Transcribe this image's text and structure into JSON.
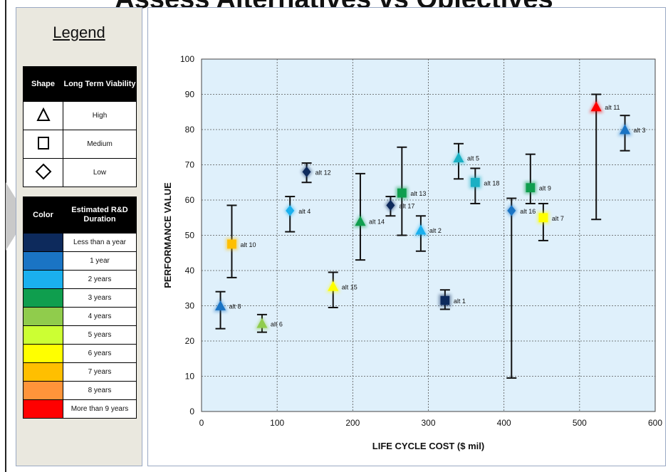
{
  "page_title": "Assess Alternatives vs Objectives",
  "legend": {
    "title": "Legend",
    "shape_table": {
      "headers": [
        "Shape",
        "Long Term Viability"
      ],
      "rows": [
        {
          "shape_icon": "triangle-icon",
          "label": "High"
        },
        {
          "shape_icon": "square-icon",
          "label": "Medium"
        },
        {
          "shape_icon": "diamond-icon",
          "label": "Low"
        }
      ]
    },
    "color_table": {
      "headers": [
        "Color",
        "Estimated R&D Duration"
      ],
      "rows": [
        {
          "color": "#0d2a5c",
          "label": "Less than a year"
        },
        {
          "color": "#1a74c4",
          "label": "1 year"
        },
        {
          "color": "#1ab0ee",
          "label": "2 years"
        },
        {
          "color": "#0f9e4e",
          "label": "3 years"
        },
        {
          "color": "#90cc4c",
          "label": "4 years"
        },
        {
          "color": "#ccff33",
          "label": "5 years"
        },
        {
          "color": "#ffff00",
          "label": "6 years"
        },
        {
          "color": "#ffbf00",
          "label": "7 years"
        },
        {
          "color": "#ff943a",
          "label": "8 years"
        },
        {
          "color": "#ff0000",
          "label": "More than 9 years"
        }
      ]
    }
  },
  "chart_data": {
    "type": "scatter",
    "title": "",
    "xlabel": "LIFE CYCLE COST ($ mil)",
    "ylabel": "PERFORMANCE VALUE",
    "xlim": [
      0,
      600
    ],
    "ylim": [
      0,
      100
    ],
    "xticks": [
      0,
      100,
      200,
      300,
      400,
      500,
      600
    ],
    "yticks": [
      0,
      10,
      20,
      30,
      40,
      50,
      60,
      70,
      80,
      90,
      100
    ],
    "grid": true,
    "points": [
      {
        "label": "alt 1",
        "x": 322,
        "y": 31.5,
        "low": 29,
        "high": 34.5,
        "shape": "square",
        "color": "#0d2a5c"
      },
      {
        "label": "alt 2",
        "x": 290,
        "y": 51.5,
        "low": 45.5,
        "high": 55.5,
        "shape": "triangle",
        "color": "#1ab0ee"
      },
      {
        "label": "alt 3",
        "x": 560,
        "y": 80,
        "low": 74,
        "high": 84,
        "shape": "triangle",
        "color": "#1a74c4"
      },
      {
        "label": "alt 4",
        "x": 117,
        "y": 57,
        "low": 51,
        "high": 61,
        "shape": "diamond",
        "color": "#1ab0ee"
      },
      {
        "label": "alt 5",
        "x": 340,
        "y": 72,
        "low": 66,
        "high": 76,
        "shape": "triangle",
        "color": "#1ab0c4"
      },
      {
        "label": "alt 6",
        "x": 80,
        "y": 25,
        "low": 22.5,
        "high": 27.5,
        "shape": "triangle",
        "color": "#90cc4c"
      },
      {
        "label": "alt 7",
        "x": 452,
        "y": 55,
        "low": 48.5,
        "high": 59,
        "shape": "square",
        "color": "#ffff00"
      },
      {
        "label": "alt 8",
        "x": 25,
        "y": 30,
        "low": 23.5,
        "high": 34,
        "shape": "triangle",
        "color": "#1a74c4"
      },
      {
        "label": "alt 9",
        "x": 435,
        "y": 63.5,
        "low": 59,
        "high": 73,
        "shape": "square",
        "color": "#0f9e4e"
      },
      {
        "label": "alt 10",
        "x": 40,
        "y": 47.5,
        "low": 38,
        "high": 58.5,
        "shape": "square",
        "color": "#ffbf00"
      },
      {
        "label": "alt 11",
        "x": 522,
        "y": 86.5,
        "low": 54.5,
        "high": 90,
        "shape": "triangle",
        "color": "#ff0000"
      },
      {
        "label": "alt 12",
        "x": 139,
        "y": 68,
        "low": 65,
        "high": 70.5,
        "shape": "diamond",
        "color": "#0d2a5c"
      },
      {
        "label": "alt 13",
        "x": 265,
        "y": 62,
        "low": 50,
        "high": 75,
        "shape": "square",
        "color": "#0f9e4e"
      },
      {
        "label": "alt 14",
        "x": 210,
        "y": 54,
        "low": 43,
        "high": 67.5,
        "shape": "triangle",
        "color": "#0f9e4e"
      },
      {
        "label": "alt 15",
        "x": 174,
        "y": 35.5,
        "low": 29.5,
        "high": 39.5,
        "shape": "triangle",
        "color": "#ffff00"
      },
      {
        "label": "alt 16",
        "x": 410,
        "y": 57,
        "low": 9.5,
        "high": 60.5,
        "shape": "diamond",
        "color": "#1a74c4"
      },
      {
        "label": "alt 17",
        "x": 250,
        "y": 58.5,
        "low": 55.5,
        "high": 61,
        "shape": "diamond",
        "color": "#0d2a5c"
      },
      {
        "label": "alt 18",
        "x": 362,
        "y": 65,
        "low": 59,
        "high": 69,
        "shape": "square",
        "color": "#1ab0c4"
      }
    ]
  }
}
